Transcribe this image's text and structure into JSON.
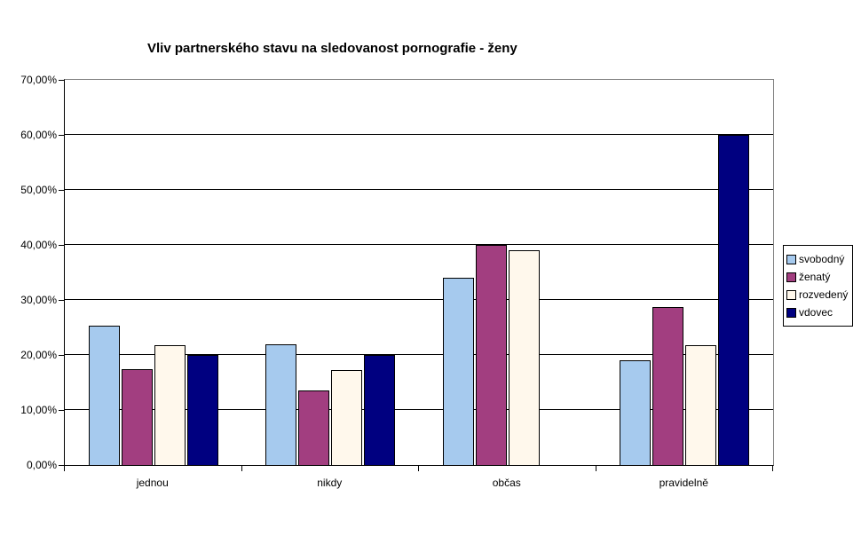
{
  "title": "Vliv partnerského stavu na sledovanost pornografie - ženy",
  "chart_data": {
    "type": "bar",
    "title": "Vliv partnerského stavu na sledovanost pornografie - ženy",
    "categories": [
      "jednou",
      "nikdy",
      "občas",
      "pravidelně"
    ],
    "series": [
      {
        "name": "svobodný",
        "color": "#A6CAEE",
        "values": [
          25.3,
          21.9,
          34.0,
          19.0
        ]
      },
      {
        "name": "ženatý",
        "color": "#A23E80",
        "values": [
          17.4,
          13.6,
          40.0,
          28.7
        ]
      },
      {
        "name": "rozvedený",
        "color": "#FFF8EC",
        "values": [
          21.7,
          17.3,
          39.0,
          21.7
        ]
      },
      {
        "name": "vdovec",
        "color": "#000080",
        "values": [
          20.0,
          20.0,
          0.0,
          60.0
        ]
      }
    ],
    "xlabel": "",
    "ylabel": "",
    "ylim": [
      0,
      70
    ],
    "ytick_step": 10,
    "ytick_labels": [
      "0,00%",
      "10,00%",
      "20,00%",
      "30,00%",
      "40,00%",
      "50,00%",
      "60,00%",
      "70,00%"
    ],
    "grid": true,
    "legend_position": "right",
    "colors": {
      "plot_border": "#808080",
      "axis": "#000000",
      "gridline": "#000000",
      "background": "#FFFFFF"
    }
  }
}
